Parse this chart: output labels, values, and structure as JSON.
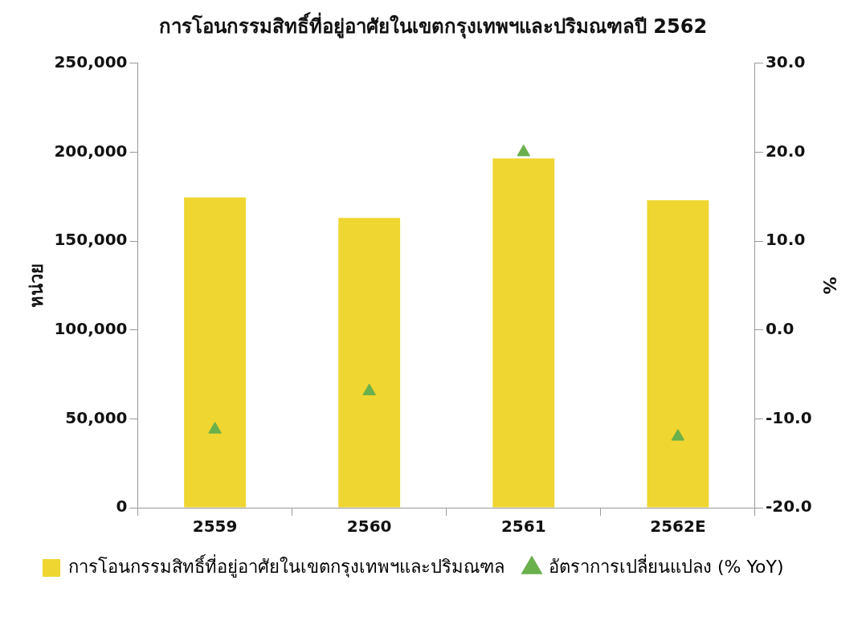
{
  "chart_data": {
    "type": "bar",
    "title": "การโอนกรรมสิทธิ์ที่อยู่อาศัยในเขตกรุงเทพฯและปริมณฑลปี 2562",
    "ylabel": "หน่วย",
    "y2label": "%",
    "categories": [
      "2559",
      "2560",
      "2561",
      "2562E"
    ],
    "series": [
      {
        "name": "การโอนกรรมสิทธิ์ที่อยู่อาศัยในเขตกรุงเทพฯและปริมณฑล",
        "color": "#efd630",
        "values": [
          174500,
          163000,
          196500,
          173000
        ]
      },
      {
        "name": "อัตราการเปลี่ยนแปลง (% YoY)",
        "type": "scatter",
        "axis": "y2",
        "marker": "triangle",
        "color": "#6ab04c",
        "values": [
          -11.2,
          -6.9,
          20.0,
          -12.0
        ]
      }
    ],
    "ylim": [
      0,
      250000
    ],
    "yticks": [
      {
        "value": 0,
        "label": "0"
      },
      {
        "value": 50000,
        "label": "50,000"
      },
      {
        "value": 100000,
        "label": "100,000"
      },
      {
        "value": 150000,
        "label": "150,000"
      },
      {
        "value": 200000,
        "label": "200,000"
      },
      {
        "value": 250000,
        "label": "250,000"
      }
    ],
    "y2lim": [
      -20,
      30
    ],
    "y2ticks": [
      {
        "value": -20,
        "label": "-20.0"
      },
      {
        "value": -10,
        "label": "-10.0"
      },
      {
        "value": 0,
        "label": "0.0"
      },
      {
        "value": 10,
        "label": "10.0"
      },
      {
        "value": 20,
        "label": "20.0"
      },
      {
        "value": 30,
        "label": "30.0"
      }
    ],
    "legend": "bottom",
    "grid": false
  }
}
